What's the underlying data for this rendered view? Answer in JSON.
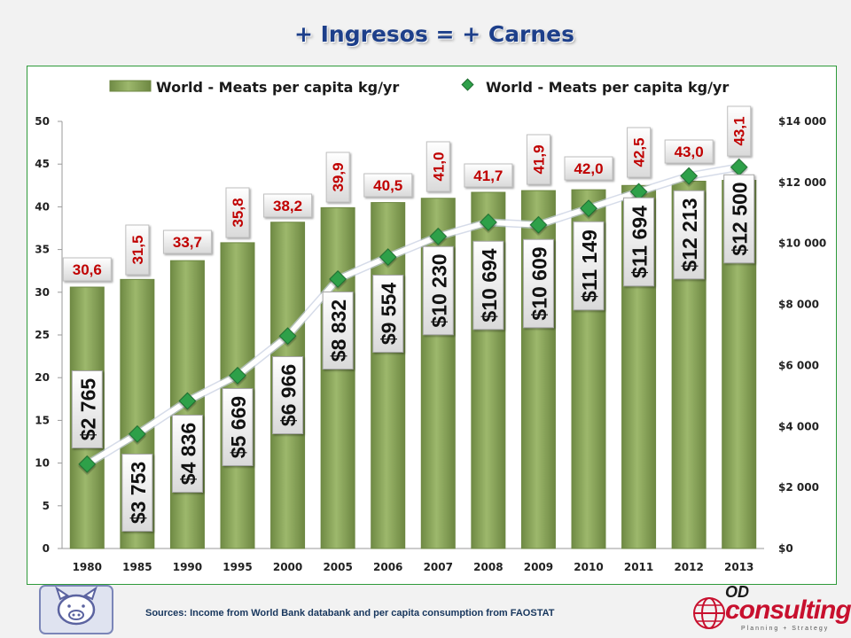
{
  "page": {
    "title": "+ Ingresos = + Carnes",
    "source": "Sources: Income from World Bank databank and per capita consumption from FAOSTAT",
    "logo_text_1": "OD",
    "logo_text_2": "consulting",
    "logo_text_3": "Planning + Strategy"
  },
  "colors": {
    "bar": "#8fa861",
    "line": "#ffffff",
    "marker": "#2fa04a",
    "bar_label": "#c00000",
    "title": "#1d3f8a"
  },
  "chart_data": {
    "type": "bar",
    "categories": [
      "1980",
      "1985",
      "1990",
      "1995",
      "2000",
      "2005",
      "2006",
      "2007",
      "2008",
      "2009",
      "2010",
      "2011",
      "2012",
      "2013"
    ],
    "series": [
      {
        "name": "World - Meats per capita kg/yr",
        "type": "bar",
        "axis": "left",
        "values": [
          30.6,
          31.5,
          33.7,
          35.8,
          38.2,
          39.9,
          40.5,
          41.0,
          41.7,
          41.9,
          42.0,
          42.5,
          43.0,
          43.1
        ],
        "labels": [
          "30,6",
          "31,5",
          "33,7",
          "35,8",
          "38,2",
          "39,9",
          "40,5",
          "41,0",
          "41,7",
          "41,9",
          "42,0",
          "42,5",
          "43,0",
          "43,1"
        ]
      },
      {
        "name": "World - Meats per capita kg/yr",
        "type": "line",
        "axis": "right",
        "values": [
          2765,
          3753,
          4836,
          5669,
          6966,
          8832,
          9554,
          10230,
          10694,
          10609,
          11149,
          11694,
          12213,
          12500
        ],
        "labels": [
          "$2 765",
          "$3 753",
          "$4 836",
          "$5 669",
          "$6 966",
          "$8 832",
          "$9 554",
          "$10 230",
          "$10 694",
          "$10 609",
          "$11 149",
          "$11 694",
          "$12 213",
          "$12 500"
        ]
      }
    ],
    "y_left": {
      "ylim": [
        0,
        50
      ],
      "ticks": [
        "0",
        "5",
        "10",
        "15",
        "20",
        "25",
        "30",
        "35",
        "40",
        "45",
        "50"
      ]
    },
    "y_right": {
      "ylim": [
        0,
        14000
      ],
      "ticks": [
        "$0",
        "$2 000",
        "$4 000",
        "$6 000",
        "$8 000",
        "$10 000",
        "$12 000",
        "$14 000"
      ]
    },
    "legend_position": "top"
  }
}
